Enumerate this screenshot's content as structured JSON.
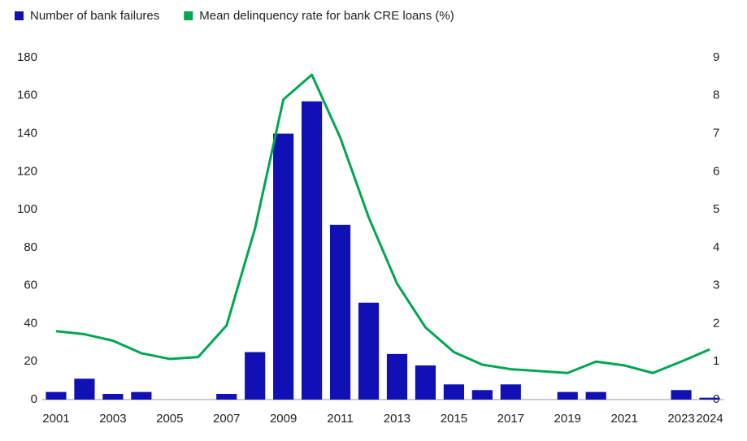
{
  "chart_data": {
    "type": "bar-line",
    "categories": [
      "2001",
      null,
      "2003",
      null,
      "2005",
      null,
      "2007",
      null,
      "2009",
      null,
      "2011",
      null,
      "2013",
      null,
      "2015",
      null,
      "2017",
      null,
      "2019",
      null,
      "2021",
      null,
      "2023",
      "2024"
    ],
    "series": [
      {
        "name": "Number of bank failures",
        "type": "bar",
        "color": "#1010b4",
        "values": [
          4,
          11,
          3,
          4,
          0,
          0,
          3,
          25,
          140,
          157,
          92,
          51,
          24,
          18,
          8,
          5,
          8,
          0,
          4,
          4,
          0,
          0,
          5,
          1
        ]
      },
      {
        "name": "Mean delinquency rate for bank CRE loans (%)",
        "type": "line",
        "axis": "y2",
        "color": "#00a651",
        "values": [
          1.8,
          1.72,
          1.55,
          1.22,
          1.07,
          1.12,
          1.95,
          4.5,
          7.9,
          8.55,
          6.9,
          4.8,
          3.05,
          1.9,
          1.25,
          0.92,
          0.8,
          0.75,
          0.7,
          1.0,
          0.9,
          0.7,
          1.0,
          1.32
        ]
      }
    ],
    "ylim": [
      0,
      180
    ],
    "yticks": [
      0,
      20,
      40,
      60,
      80,
      100,
      120,
      140,
      160,
      180
    ],
    "y2lim": [
      0,
      9
    ],
    "y2ticks": [
      0,
      1,
      2,
      3,
      4,
      5,
      6,
      7,
      8,
      9
    ],
    "grid": false,
    "legend": "top-left"
  }
}
